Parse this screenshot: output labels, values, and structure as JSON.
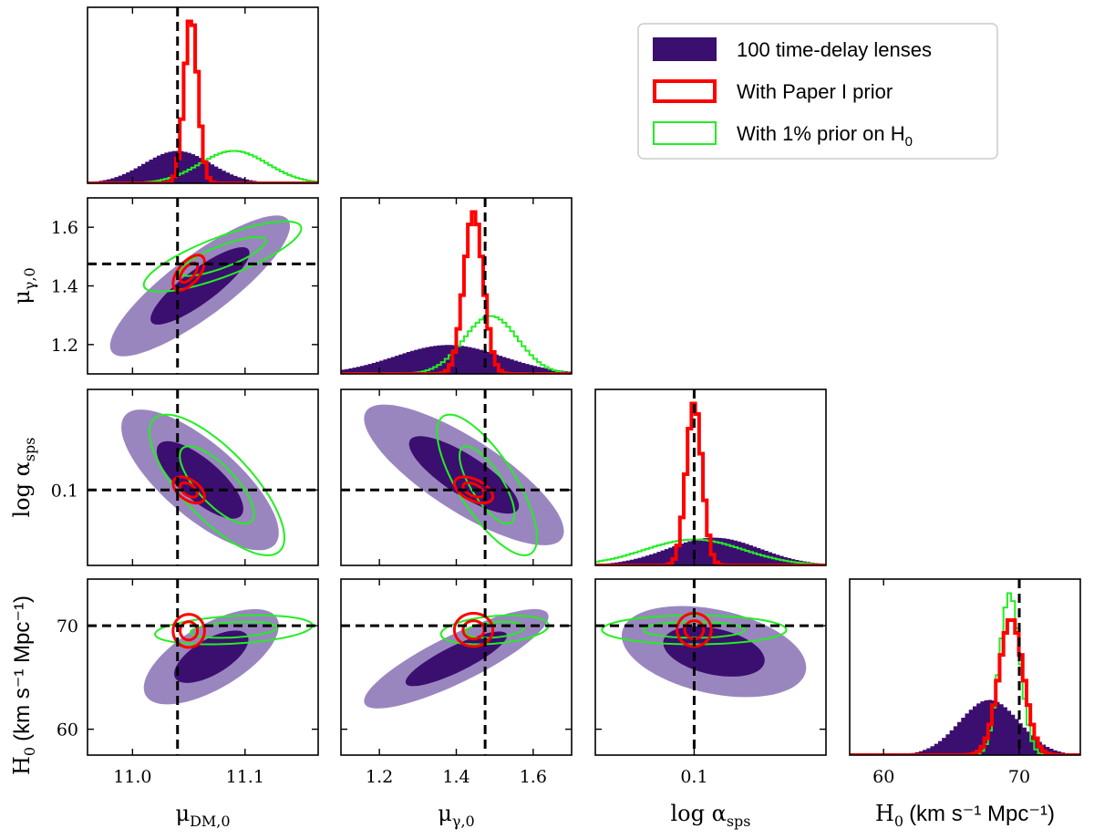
{
  "chart_data": {
    "type": "corner",
    "parameters": [
      {
        "key": "mu_dm",
        "label_main": "μ",
        "label_sub": "DM,0",
        "range": [
          10.96,
          11.165
        ],
        "ticks": [
          11.0,
          11.1
        ],
        "tick_labels": [
          "11.0",
          "11.1"
        ],
        "truth": 11.04
      },
      {
        "key": "mu_gamma",
        "label_main": "μ",
        "label_sub": "γ,0",
        "range": [
          1.1,
          1.7
        ],
        "ticks": [
          1.2,
          1.4,
          1.6
        ],
        "tick_labels": [
          "1.2",
          "1.4",
          "1.6"
        ],
        "truth": 1.475
      },
      {
        "key": "log_alpha",
        "label_main": "log α",
        "label_sub": "sps",
        "range": [
          -0.05,
          0.3
        ],
        "ticks": [
          0.1
        ],
        "tick_labels": [
          "0.1"
        ],
        "truth": 0.1
      },
      {
        "key": "h0",
        "label_main": "H",
        "label_sub": "0",
        "unit": "(km s⁻¹ Mpc⁻¹)",
        "range": [
          57.5,
          74.5
        ],
        "ticks": [
          60,
          70
        ],
        "tick_labels": [
          "60",
          "70"
        ],
        "truth": 70.0
      }
    ],
    "legend": [
      {
        "key": "all",
        "label": "100 time-delay lenses",
        "style": "filled"
      },
      {
        "key": "paper1",
        "label": "With Paper I prior",
        "style": "step"
      },
      {
        "key": "h0prior",
        "label": "With 1% prior on H",
        "label_sub": "0",
        "style": "step"
      }
    ],
    "colors": {
      "all_dark": "#3b0f6f",
      "all_light": "#9a86bf",
      "paper1": "#ff0000",
      "h0prior": "#22ee22",
      "truth": "#000000"
    },
    "series": [
      {
        "name": "100 time-delay lenses",
        "marginals": {
          "mu_dm": {
            "mean": 11.04,
            "sd": 0.03
          },
          "mu_gamma": {
            "mean": 1.38,
            "sd": 0.14
          },
          "log_alpha": {
            "mean": 0.13,
            "sd": 0.07
          },
          "h0": {
            "mean": 67.8,
            "sd": 2.2
          }
        },
        "contours_2d": [
          {
            "x": "mu_dm",
            "y": "mu_gamma",
            "cx": 11.06,
            "cy": 1.4,
            "sx": 0.04,
            "sy": 0.12,
            "rho": 0.85
          },
          {
            "x": "mu_dm",
            "y": "log_alpha",
            "cx": 11.06,
            "cy": 0.12,
            "sx": 0.035,
            "sy": 0.07,
            "rho": -0.75
          },
          {
            "x": "mu_gamma",
            "y": "log_alpha",
            "cx": 1.42,
            "cy": 0.13,
            "sx": 0.13,
            "sy": 0.07,
            "rho": -0.8
          },
          {
            "x": "mu_dm",
            "y": "h0",
            "cx": 11.07,
            "cy": 67.0,
            "sx": 0.03,
            "sy": 2.3,
            "rho": 0.65
          },
          {
            "x": "mu_gamma",
            "y": "h0",
            "cx": 1.4,
            "cy": 66.8,
            "sx": 0.12,
            "sy": 2.4,
            "rho": 0.85
          },
          {
            "x": "log_alpha",
            "y": "h0",
            "cx": 0.13,
            "cy": 67.5,
            "sx": 0.07,
            "sy": 2.2,
            "rho": -0.35
          }
        ]
      },
      {
        "name": "With Paper I prior",
        "marginals": {
          "mu_dm": {
            "mean": 11.052,
            "sd": 0.006
          },
          "mu_gamma": {
            "mean": 1.445,
            "sd": 0.025
          },
          "log_alpha": {
            "mean": 0.1,
            "sd": 0.012
          },
          "h0": {
            "mean": 69.4,
            "sd": 0.9
          }
        },
        "contours_2d": [
          {
            "x": "mu_dm",
            "y": "mu_gamma",
            "cx": 11.05,
            "cy": 1.445,
            "sx": 0.007,
            "sy": 0.03,
            "rho": 0.6
          },
          {
            "x": "mu_dm",
            "y": "log_alpha",
            "cx": 11.05,
            "cy": 0.1,
            "sx": 0.007,
            "sy": 0.013,
            "rho": -0.5
          },
          {
            "x": "mu_gamma",
            "y": "log_alpha",
            "cx": 1.445,
            "cy": 0.1,
            "sx": 0.025,
            "sy": 0.013,
            "rho": -0.5
          },
          {
            "x": "mu_dm",
            "y": "h0",
            "cx": 11.05,
            "cy": 69.5,
            "sx": 0.007,
            "sy": 0.8,
            "rho": 0.0
          },
          {
            "x": "mu_gamma",
            "y": "h0",
            "cx": 1.445,
            "cy": 69.6,
            "sx": 0.025,
            "sy": 0.8,
            "rho": 0.0
          },
          {
            "x": "log_alpha",
            "y": "h0",
            "cx": 0.1,
            "cy": 69.6,
            "sx": 0.013,
            "sy": 0.8,
            "rho": 0.0
          }
        ]
      },
      {
        "name": "With 1% prior on H0",
        "marginals": {
          "mu_dm": {
            "mean": 11.09,
            "sd": 0.03
          },
          "mu_gamma": {
            "mean": 1.49,
            "sd": 0.07
          },
          "log_alpha": {
            "mean": 0.1,
            "sd": 0.075
          },
          "h0": {
            "mean": 69.3,
            "sd": 0.75
          }
        },
        "contours_2d": [
          {
            "x": "mu_dm",
            "y": "mu_gamma",
            "cx": 11.08,
            "cy": 1.5,
            "sx": 0.035,
            "sy": 0.06,
            "rho": 0.8
          },
          {
            "x": "mu_dm",
            "y": "log_alpha",
            "cx": 11.075,
            "cy": 0.11,
            "sx": 0.03,
            "sy": 0.07,
            "rho": -0.75
          },
          {
            "x": "mu_gamma",
            "y": "log_alpha",
            "cx": 1.48,
            "cy": 0.11,
            "sx": 0.065,
            "sy": 0.07,
            "rho": -0.75
          },
          {
            "x": "mu_dm",
            "y": "h0",
            "cx": 11.09,
            "cy": 69.6,
            "sx": 0.035,
            "sy": 0.7,
            "rho": 0.3
          },
          {
            "x": "mu_gamma",
            "y": "h0",
            "cx": 1.5,
            "cy": 69.6,
            "sx": 0.07,
            "sy": 0.7,
            "rho": 0.3
          },
          {
            "x": "log_alpha",
            "y": "h0",
            "cx": 0.1,
            "cy": 69.6,
            "sx": 0.07,
            "sy": 0.7,
            "rho": 0.0
          }
        ]
      }
    ]
  }
}
